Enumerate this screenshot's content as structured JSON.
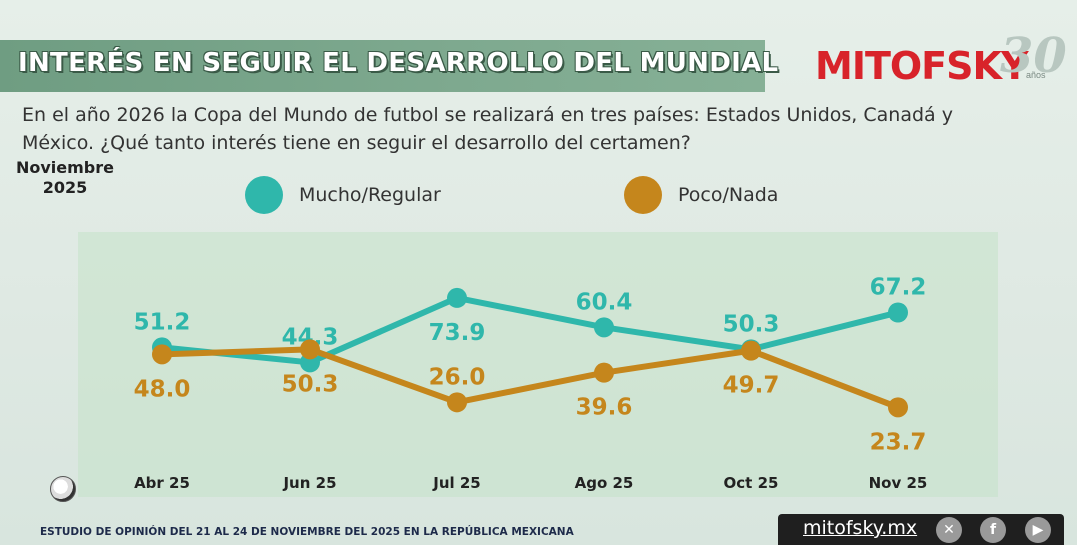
{
  "header": {
    "title": "INTERÉS EN SEGUIR EL DESARROLLO DEL MUNDIAL",
    "logo": "MITOFSKY",
    "logo_anniversary": "30",
    "logo_anniversary_sub": "años"
  },
  "question": "En el año 2026 la Copa del Mundo de futbol se realizará en tres países:  Estados Unidos, Canadá y México. ¿Qué tanto interés tiene en seguir el desarrollo del certamen?",
  "date_label": "Noviembre 2025",
  "footer": {
    "note": "ESTUDIO DE OPINIÓN DEL 21 AL 24 DE NOVIEMBRE DEL 2025 EN LA REPÚBLICA MEXICANA",
    "url": "mitofsky.mx"
  },
  "colors": {
    "mucho": "#2fb7ab",
    "poco": "#c5861c"
  },
  "chart_data": {
    "type": "line",
    "title": "INTERÉS EN SEGUIR EL DESARROLLO DEL MUNDIAL",
    "xlabel": "",
    "ylabel": "",
    "ylim": [
      0,
      100
    ],
    "grid": false,
    "legend": "top",
    "categories": [
      "Abr 25",
      "Jun 25",
      "Jul 25",
      "Ago 25",
      "Oct 25",
      "Nov 25"
    ],
    "series": [
      {
        "name": "Mucho/Regular",
        "values": [
          51.2,
          44.3,
          73.9,
          60.4,
          50.3,
          67.2
        ]
      },
      {
        "name": "Poco/Nada",
        "values": [
          48.0,
          50.3,
          26.0,
          39.6,
          49.7,
          23.7
        ]
      }
    ]
  }
}
